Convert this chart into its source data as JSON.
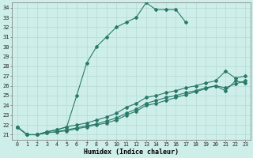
{
  "xlabel": "Humidex (Indice chaleur)",
  "ylabel": "",
  "xlim": [
    -0.5,
    23.5
  ],
  "ylim": [
    20.5,
    34.5
  ],
  "xticks": [
    0,
    1,
    2,
    3,
    4,
    5,
    6,
    7,
    8,
    9,
    10,
    11,
    12,
    13,
    14,
    15,
    16,
    17,
    18,
    19,
    20,
    21,
    22,
    23
  ],
  "yticks": [
    21,
    22,
    23,
    24,
    25,
    26,
    27,
    28,
    29,
    30,
    31,
    32,
    33,
    34
  ],
  "bg_color": "#ceeee9",
  "line_color": "#2a7a6a",
  "grid_color": "#b8ddd8",
  "lines": [
    {
      "x": [
        0,
        1,
        2,
        3,
        4,
        5,
        6,
        7,
        8,
        9,
        10,
        11,
        12,
        13,
        14,
        15,
        16,
        17
      ],
      "y": [
        21.8,
        21.0,
        21.0,
        21.3,
        21.5,
        21.8,
        25.0,
        28.3,
        30.0,
        31.0,
        32.0,
        32.5,
        33.0,
        34.5,
        33.8,
        33.8,
        33.8,
        32.5
      ]
    },
    {
      "x": [
        0,
        1,
        2,
        3,
        4,
        5,
        6,
        7,
        8,
        9,
        10,
        11,
        12,
        13,
        14,
        15,
        16,
        17,
        18,
        19,
        20,
        21,
        22,
        23
      ],
      "y": [
        21.8,
        21.0,
        21.0,
        21.3,
        21.5,
        21.8,
        22.0,
        22.2,
        22.5,
        22.8,
        23.2,
        23.8,
        24.2,
        24.8,
        25.0,
        25.3,
        25.5,
        25.8,
        26.0,
        26.3,
        26.5,
        27.5,
        26.8,
        27.0
      ]
    },
    {
      "x": [
        0,
        1,
        2,
        3,
        4,
        5,
        6,
        7,
        8,
        9,
        10,
        11,
        12,
        13,
        14,
        15,
        16,
        17,
        18,
        19,
        20,
        21,
        22,
        23
      ],
      "y": [
        21.8,
        21.0,
        21.0,
        21.2,
        21.3,
        21.5,
        21.7,
        21.9,
        22.1,
        22.4,
        22.7,
        23.2,
        23.6,
        24.2,
        24.5,
        24.8,
        25.0,
        25.3,
        25.5,
        25.8,
        26.0,
        25.8,
        26.2,
        26.5
      ]
    },
    {
      "x": [
        0,
        1,
        2,
        3,
        4,
        5,
        6,
        7,
        8,
        9,
        10,
        11,
        12,
        13,
        14,
        15,
        16,
        17,
        18,
        19,
        20,
        21,
        22,
        23
      ],
      "y": [
        21.8,
        21.0,
        21.0,
        21.2,
        21.3,
        21.4,
        21.6,
        21.8,
        22.0,
        22.2,
        22.5,
        23.0,
        23.4,
        24.0,
        24.2,
        24.5,
        24.8,
        25.1,
        25.4,
        25.7,
        26.0,
        25.5,
        26.5,
        26.3
      ]
    }
  ]
}
